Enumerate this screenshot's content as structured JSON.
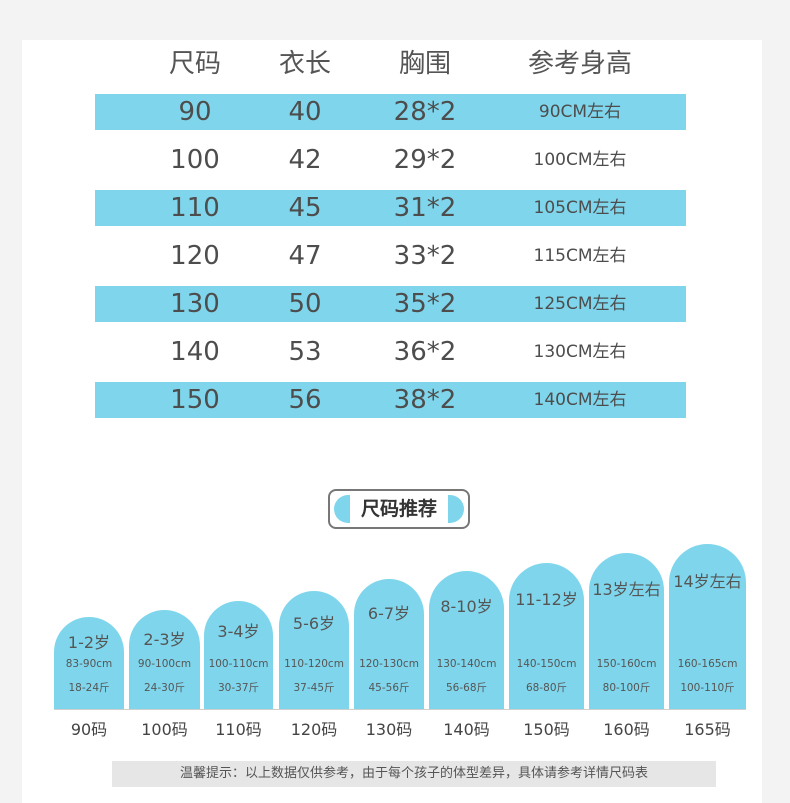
{
  "table": {
    "headers": [
      "尺码",
      "衣长",
      "胸围",
      "参考身高"
    ],
    "rows": [
      [
        "90",
        "40",
        "28*2",
        "90CM左右"
      ],
      [
        "100",
        "42",
        "29*2",
        "100CM左右"
      ],
      [
        "110",
        "45",
        "31*2",
        "105CM左右"
      ],
      [
        "120",
        "47",
        "33*2",
        "115CM左右"
      ],
      [
        "130",
        "50",
        "35*2",
        "125CM左右"
      ],
      [
        "140",
        "53",
        "36*2",
        "130CM左右"
      ],
      [
        "150",
        "56",
        "38*2",
        "140CM左右"
      ]
    ]
  },
  "recommend": {
    "title": "尺码推荐",
    "items": [
      {
        "age": "1-2岁",
        "height": "83-90cm",
        "weight": "18-24斤",
        "size": "90码"
      },
      {
        "age": "2-3岁",
        "height": "90-100cm",
        "weight": "24-30斤",
        "size": "100码"
      },
      {
        "age": "3-4岁",
        "height": "100-110cm",
        "weight": "30-37斤",
        "size": "110码"
      },
      {
        "age": "5-6岁",
        "height": "110-120cm",
        "weight": "37-45斤",
        "size": "120码"
      },
      {
        "age": "6-7岁",
        "height": "120-130cm",
        "weight": "45-56斤",
        "size": "130码"
      },
      {
        "age": "8-10岁",
        "height": "130-140cm",
        "weight": "56-68斤",
        "size": "140码"
      },
      {
        "age": "11-12岁",
        "height": "140-150cm",
        "weight": "68-80斤",
        "size": "150码"
      },
      {
        "age": "13岁左右",
        "height": "150-160cm",
        "weight": "80-100斤",
        "size": "160码"
      },
      {
        "age": "14岁左右",
        "height": "160-165cm",
        "weight": "100-110斤",
        "size": "165码"
      }
    ]
  },
  "tip": "温馨提示：以上数据仅供参考，由于每个孩子的体型差异，具体请参考详情尺码表",
  "colors": {
    "accent": "#7fd6ec",
    "background": "#ffffff"
  }
}
